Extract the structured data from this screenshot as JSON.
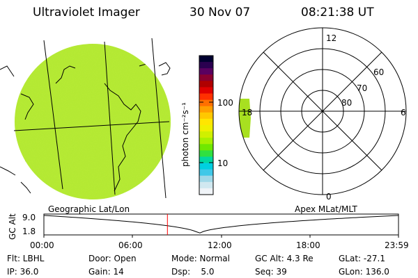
{
  "header": {
    "instrument": "Ultraviolet Imager",
    "date": "30 Nov 07",
    "time": "08:21:38 UT"
  },
  "colorbar": {
    "unit_label": "photon cm⁻²s⁻¹",
    "ticks": [
      "100",
      "10"
    ],
    "colors_top_to_bottom": [
      "#000030",
      "#2a0050",
      "#5a0060",
      "#8a0030",
      "#b00000",
      "#e00000",
      "#ff3000",
      "#ff7000",
      "#ffa000",
      "#ffc800",
      "#ffe600",
      "#f0f000",
      "#d0f000",
      "#a8f000",
      "#70e800",
      "#30e040",
      "#00d8a0",
      "#00d0e0",
      "#40c8e8",
      "#a0d8e8",
      "#d0e8f0",
      "#f0f4f8"
    ]
  },
  "geo_map": {
    "label": "Geographic Lat/Lon",
    "disk_color": "#b0e830"
  },
  "polar_plot": {
    "label": "Apex MLat/MLT",
    "mlt_labels": {
      "top": "12",
      "right": "6",
      "bottom": "0",
      "left": "18"
    },
    "mlat_labels": [
      "60",
      "70",
      "80"
    ]
  },
  "timeline": {
    "ylabel": "GC Alt",
    "ymax": "9.0",
    "ymin": "1.8",
    "xticks": [
      "00:00",
      "06:00",
      "12:00",
      "18:00",
      "23:59"
    ],
    "marker_time": "08:21:38",
    "marker_color": "#ff0000"
  },
  "info": {
    "flt": "Flt: LBHL",
    "ip": "IP: 36.0",
    "door": "Door: Open",
    "gain": "Gain: 14",
    "mode": "Mode: Normal",
    "dsp": "Dsp:    5.0",
    "gcalt": "GC Alt: 4.3 Re",
    "seq": "Seq: 39",
    "glat": "GLat: -27.1",
    "glon": "GLon: 136.0"
  }
}
